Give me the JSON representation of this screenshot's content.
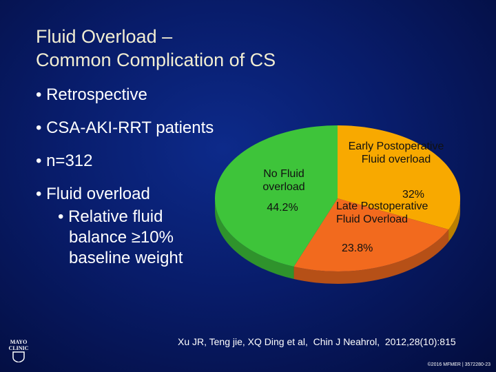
{
  "title": [
    "Fluid Overload –",
    "Common Complication of CS"
  ],
  "bullets": [
    "Retrospective",
    "CSA-AKI-RRT patients",
    "n=312",
    "Fluid overload"
  ],
  "sub_bullets": [
    "Relative fluid balance ≥10% baseline weight"
  ],
  "chart_data": {
    "type": "pie",
    "categories": [
      "Early Postoperative Fluid overload",
      "Late Postoperative Fluid Overload",
      "No Fluid overload"
    ],
    "values": [
      32,
      23.8,
      44.2
    ],
    "value_labels": [
      "32%",
      "23.8%",
      "44.2%"
    ],
    "colors": [
      "#f8a900",
      "#f26a1e",
      "#3ec43a"
    ]
  },
  "citation": "Xu JR, Teng jie, XQ Ding et al,  Chin J Neahrol,  2012,28(10):815",
  "footer": "©2016 MFMER | 3572280-23",
  "logo": "MAYO CLINIC"
}
